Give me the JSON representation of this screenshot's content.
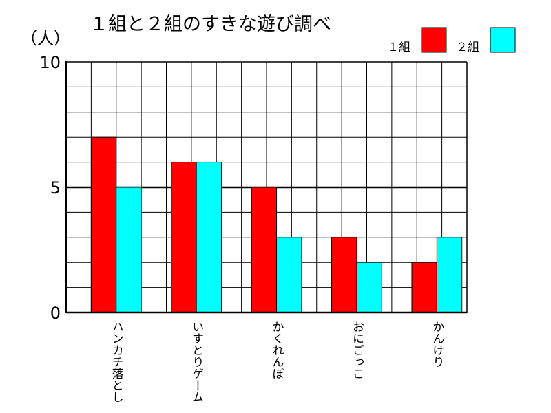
{
  "chart_data": {
    "type": "bar",
    "title": "１組と２組のすきな遊び調べ",
    "ylabel": "（人）",
    "xlabel": "",
    "categories": [
      "ハンカチ落とし",
      "いすとりゲーム",
      "かくれんぼ",
      "おにごっこ",
      "かんけり"
    ],
    "series": [
      {
        "name": "１組",
        "color": "#ff0000",
        "values": [
          7,
          6,
          5,
          3,
          2
        ]
      },
      {
        "name": "２組",
        "color": "#00ffff",
        "values": [
          5,
          6,
          3,
          2,
          3
        ]
      }
    ],
    "ylim": [
      0,
      10
    ],
    "yticks": [
      0,
      5,
      10
    ],
    "grid": true,
    "legend_position": "top-right"
  }
}
